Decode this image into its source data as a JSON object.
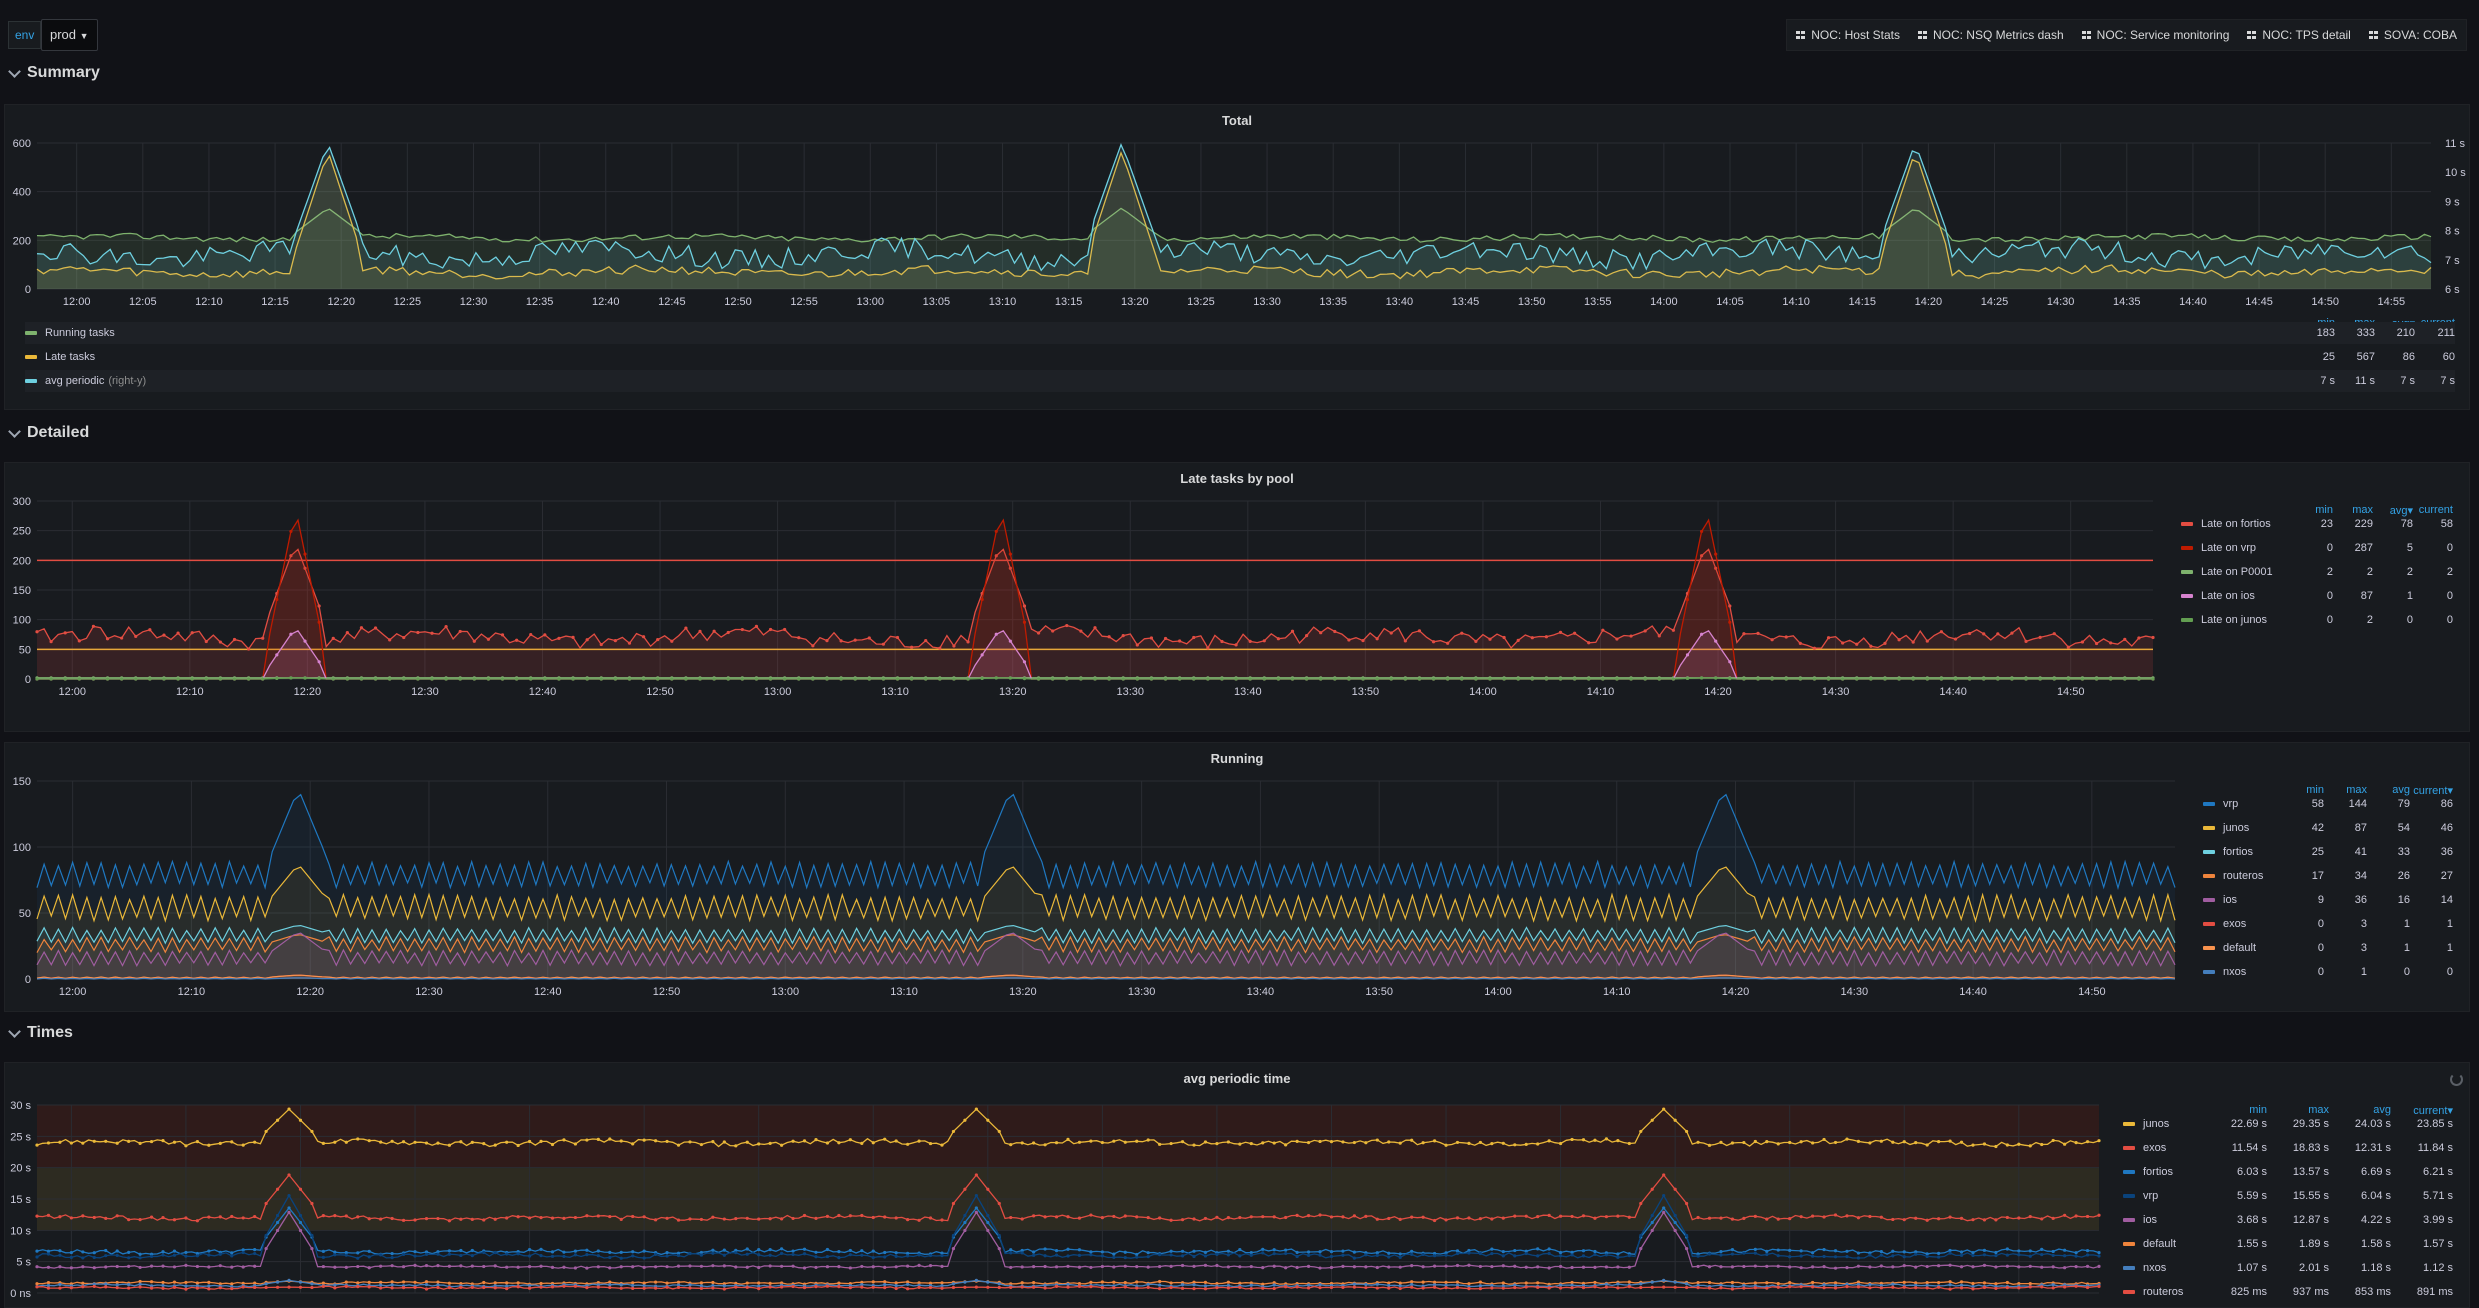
{
  "header": {
    "variable_label": "env",
    "variable_value": "prod",
    "links": [
      "NOC: Host Stats",
      "NOC: NSQ Metrics dash",
      "NOC: Service monitoring",
      "NOC: TPS detail",
      "SOVA: COBA"
    ]
  },
  "rows": {
    "summary": "Summary",
    "detailed": "Detailed",
    "times": "Times"
  },
  "panels": {
    "total": {
      "title": "Total",
      "legend_headers": [
        "min",
        "max",
        "avg▾",
        "current"
      ],
      "legend": [
        {
          "name": "Running tasks",
          "sub": "",
          "color": "#7eb26d",
          "min": "183",
          "max": "333",
          "avg": "210",
          "current": "211"
        },
        {
          "name": "Late tasks",
          "sub": "",
          "color": "#eab839",
          "min": "25",
          "max": "567",
          "avg": "86",
          "current": "60"
        },
        {
          "name": "avg periodic",
          "sub": "(right-y)",
          "color": "#6ed0e0",
          "min": "7 s",
          "max": "11 s",
          "avg": "7 s",
          "current": "7 s"
        }
      ]
    },
    "late_by_pool": {
      "title": "Late tasks by pool",
      "legend_headers": [
        "min",
        "max",
        "avg▾",
        "current"
      ],
      "legend": [
        {
          "name": "Late on fortios",
          "color": "#e24d42",
          "min": "23",
          "max": "229",
          "avg": "78",
          "current": "58"
        },
        {
          "name": "Late on vrp",
          "color": "#bf1b00",
          "min": "0",
          "max": "287",
          "avg": "5",
          "current": "0"
        },
        {
          "name": "Late on P0001",
          "color": "#7eb26d",
          "min": "2",
          "max": "2",
          "avg": "2",
          "current": "2"
        },
        {
          "name": "Late on ios",
          "color": "#d683ce",
          "min": "0",
          "max": "87",
          "avg": "1",
          "current": "0"
        },
        {
          "name": "Late on junos",
          "color": "#629e51",
          "min": "0",
          "max": "2",
          "avg": "0",
          "current": "0"
        }
      ]
    },
    "running": {
      "title": "Running",
      "legend_headers": [
        "min",
        "max",
        "avg",
        "current▾"
      ],
      "legend": [
        {
          "name": "vrp",
          "color": "#1f78c1",
          "min": "58",
          "max": "144",
          "avg": "79",
          "current": "86"
        },
        {
          "name": "junos",
          "color": "#eab839",
          "min": "42",
          "max": "87",
          "avg": "54",
          "current": "46"
        },
        {
          "name": "fortios",
          "color": "#6ed0e0",
          "min": "25",
          "max": "41",
          "avg": "33",
          "current": "36"
        },
        {
          "name": "routeros",
          "color": "#ef843c",
          "min": "17",
          "max": "34",
          "avg": "26",
          "current": "27"
        },
        {
          "name": "ios",
          "color": "#a05da0",
          "min": "9",
          "max": "36",
          "avg": "16",
          "current": "14"
        },
        {
          "name": "exos",
          "color": "#e24d42",
          "min": "0",
          "max": "3",
          "avg": "1",
          "current": "1"
        },
        {
          "name": "default",
          "color": "#f9934e",
          "min": "0",
          "max": "3",
          "avg": "1",
          "current": "1"
        },
        {
          "name": "nxos",
          "color": "#447ebc",
          "min": "0",
          "max": "1",
          "avg": "0",
          "current": "0"
        }
      ]
    },
    "avg_periodic": {
      "title": "avg periodic time",
      "legend_headers": [
        "min",
        "max",
        "avg",
        "current▾"
      ],
      "legend": [
        {
          "name": "junos",
          "color": "#eab839",
          "min": "22.69 s",
          "max": "29.35 s",
          "avg": "24.03 s",
          "current": "23.85 s"
        },
        {
          "name": "exos",
          "color": "#e24d42",
          "min": "11.54 s",
          "max": "18.83 s",
          "avg": "12.31 s",
          "current": "11.84 s"
        },
        {
          "name": "fortios",
          "color": "#1f78c1",
          "min": "6.03 s",
          "max": "13.57 s",
          "avg": "6.69 s",
          "current": "6.21 s"
        },
        {
          "name": "vrp",
          "color": "#0a437c",
          "min": "5.59 s",
          "max": "15.55 s",
          "avg": "6.04 s",
          "current": "5.71 s"
        },
        {
          "name": "ios",
          "color": "#a05da0",
          "min": "3.68 s",
          "max": "12.87 s",
          "avg": "4.22 s",
          "current": "3.99 s"
        },
        {
          "name": "default",
          "color": "#ef843c",
          "min": "1.55 s",
          "max": "1.89 s",
          "avg": "1.58 s",
          "current": "1.57 s"
        },
        {
          "name": "nxos",
          "color": "#447ebc",
          "min": "1.07 s",
          "max": "2.01 s",
          "avg": "1.18 s",
          "current": "1.12 s"
        },
        {
          "name": "routeros",
          "color": "#e24d42",
          "min": "825 ms",
          "max": "937 ms",
          "avg": "853 ms",
          "current": "891 ms"
        }
      ]
    }
  },
  "chart_data": [
    {
      "type": "line",
      "title": "Total",
      "x_ticks": [
        "12:00",
        "12:05",
        "12:10",
        "12:15",
        "12:20",
        "12:25",
        "12:30",
        "12:35",
        "12:40",
        "12:45",
        "12:50",
        "12:55",
        "13:00",
        "13:05",
        "13:10",
        "13:15",
        "13:20",
        "13:25",
        "13:30",
        "13:35",
        "13:40",
        "13:45",
        "13:50",
        "13:55",
        "14:00",
        "14:05",
        "14:10",
        "14:15",
        "14:20",
        "14:25",
        "14:30",
        "14:35",
        "14:40",
        "14:45",
        "14:50",
        "14:55"
      ],
      "y_ticks": [
        "0",
        "200",
        "400",
        "600"
      ],
      "y_right_ticks": [
        "6 s",
        "7 s",
        "8 s",
        "9 s",
        "10 s",
        "11 s"
      ],
      "ylim": [
        0,
        600
      ],
      "y_right_lim": [
        6,
        11
      ],
      "spikes": [
        "12:19",
        "13:19",
        "14:19"
      ],
      "series": [
        {
          "name": "Running tasks",
          "color": "#7eb26d",
          "base": 210,
          "spike": 333
        },
        {
          "name": "Late tasks",
          "color": "#eab839",
          "base": 70,
          "spike": 567
        },
        {
          "name": "avg periodic",
          "color": "#6ed0e0",
          "axis": "right",
          "base": 7.2,
          "spike": 11
        }
      ]
    },
    {
      "type": "line",
      "title": "Late tasks by pool",
      "x_ticks": [
        "12:00",
        "12:10",
        "12:20",
        "12:30",
        "12:40",
        "12:50",
        "13:00",
        "13:10",
        "13:20",
        "13:30",
        "13:40",
        "13:50",
        "14:00",
        "14:10",
        "14:20",
        "14:30",
        "14:40",
        "14:50"
      ],
      "y_ticks": [
        "0",
        "50",
        "100",
        "150",
        "200",
        "250",
        "300"
      ],
      "ylim": [
        0,
        300
      ],
      "thresholds": [
        200,
        50
      ],
      "spikes": [
        "12:19",
        "13:19",
        "14:19"
      ],
      "series": [
        {
          "name": "Late on fortios",
          "color": "#e24d42",
          "base": 70,
          "spike": 229
        },
        {
          "name": "Late on vrp",
          "color": "#bf1b00",
          "base": 0,
          "spike": 287
        },
        {
          "name": "Late on P0001",
          "color": "#7eb26d",
          "base": 2,
          "spike": 2
        },
        {
          "name": "Late on ios",
          "color": "#d683ce",
          "base": 0,
          "spike": 87
        },
        {
          "name": "Late on junos",
          "color": "#629e51",
          "base": 0,
          "spike": 2
        }
      ]
    },
    {
      "type": "line",
      "title": "Running",
      "x_ticks": [
        "12:00",
        "12:10",
        "12:20",
        "12:30",
        "12:40",
        "12:50",
        "13:00",
        "13:10",
        "13:20",
        "13:30",
        "13:40",
        "13:50",
        "14:00",
        "14:10",
        "14:20",
        "14:30",
        "14:40",
        "14:50"
      ],
      "y_ticks": [
        "0",
        "50",
        "100",
        "150"
      ],
      "ylim": [
        0,
        150
      ],
      "spikes": [
        "12:19",
        "13:19",
        "14:19"
      ],
      "series": [
        {
          "name": "vrp",
          "color": "#1f78c1",
          "base": 79,
          "spike": 144
        },
        {
          "name": "junos",
          "color": "#eab839",
          "base": 54,
          "spike": 87
        },
        {
          "name": "fortios",
          "color": "#6ed0e0",
          "base": 33,
          "spike": 41
        },
        {
          "name": "routeros",
          "color": "#ef843c",
          "base": 26,
          "spike": 34
        },
        {
          "name": "ios",
          "color": "#a05da0",
          "base": 16,
          "spike": 36
        },
        {
          "name": "exos",
          "color": "#e24d42",
          "base": 1,
          "spike": 3
        },
        {
          "name": "default",
          "color": "#f9934e",
          "base": 1,
          "spike": 3
        },
        {
          "name": "nxos",
          "color": "#447ebc",
          "base": 0,
          "spike": 1
        }
      ]
    },
    {
      "type": "line",
      "title": "avg periodic time",
      "y_ticks": [
        "0 ns",
        "5 s",
        "10 s",
        "15 s",
        "20 s",
        "25 s",
        "30 s"
      ],
      "ylim": [
        0,
        30
      ],
      "spikes": [
        "12:19",
        "13:19",
        "14:19"
      ],
      "series": [
        {
          "name": "junos",
          "color": "#eab839",
          "base": 24,
          "spike": 29.35
        },
        {
          "name": "exos",
          "color": "#e24d42",
          "base": 12,
          "spike": 18.83
        },
        {
          "name": "fortios",
          "color": "#1f78c1",
          "base": 6.6,
          "spike": 13.57
        },
        {
          "name": "vrp",
          "color": "#0a437c",
          "base": 6,
          "spike": 15.55
        },
        {
          "name": "ios",
          "color": "#a05da0",
          "base": 4.2,
          "spike": 12.87
        },
        {
          "name": "default",
          "color": "#ef843c",
          "base": 1.6,
          "spike": 1.89
        },
        {
          "name": "nxos",
          "color": "#447ebc",
          "base": 1.2,
          "spike": 2.01
        },
        {
          "name": "routeros",
          "color": "#e24d42",
          "base": 0.85,
          "spike": 0.937
        }
      ]
    }
  ]
}
